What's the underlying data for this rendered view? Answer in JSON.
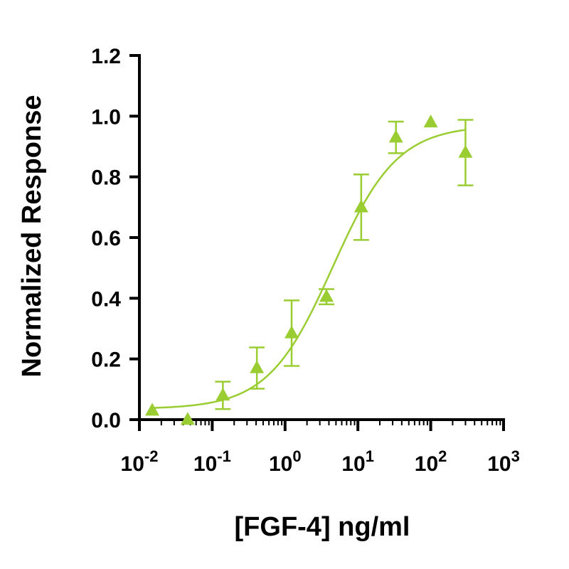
{
  "chart_data": {
    "type": "scatter",
    "title": "",
    "xlabel": "[FGF-4] ng/ml",
    "ylabel": "Normalized Response",
    "x_scale": "log",
    "xlim": [
      0.01,
      1000
    ],
    "ylim": [
      0,
      1.2
    ],
    "x_ticks": [
      {
        "base": "10",
        "exp": "-2",
        "value": 0.01
      },
      {
        "base": "10",
        "exp": "-1",
        "value": 0.1
      },
      {
        "base": "10",
        "exp": "0",
        "value": 1
      },
      {
        "base": "10",
        "exp": "1",
        "value": 10
      },
      {
        "base": "10",
        "exp": "2",
        "value": 100
      },
      {
        "base": "10",
        "exp": "3",
        "value": 1000
      }
    ],
    "y_ticks": [
      {
        "label": "0.0",
        "value": 0
      },
      {
        "label": "0.2",
        "value": 0.2
      },
      {
        "label": "0.4",
        "value": 0.4
      },
      {
        "label": "0.6",
        "value": 0.6
      },
      {
        "label": "0.8",
        "value": 0.8
      },
      {
        "label": "1.0",
        "value": 1.0
      },
      {
        "label": "1.2",
        "value": 1.2
      }
    ],
    "grid": false,
    "legend": "none",
    "color": "#9acd32",
    "marker": "triangle",
    "series": [
      {
        "points": [
          {
            "x": 0.015,
            "y": 0.03,
            "err": 0
          },
          {
            "x": 0.046,
            "y": 0.0,
            "err": 0
          },
          {
            "x": 0.14,
            "y": 0.08,
            "err": 0.045
          },
          {
            "x": 0.41,
            "y": 0.17,
            "err": 0.068
          },
          {
            "x": 1.23,
            "y": 0.285,
            "err": 0.108
          },
          {
            "x": 3.7,
            "y": 0.405,
            "err": 0.025
          },
          {
            "x": 11.1,
            "y": 0.7,
            "err": 0.108
          },
          {
            "x": 33.3,
            "y": 0.93,
            "err": 0.052
          },
          {
            "x": 100,
            "y": 0.98,
            "err": 0
          },
          {
            "x": 300,
            "y": 0.88,
            "err": 0.108
          }
        ],
        "fit": {
          "model": "4PL",
          "bottom": 0.035,
          "top": 0.97,
          "ec50": 4.5,
          "hill": 0.98
        }
      }
    ]
  }
}
